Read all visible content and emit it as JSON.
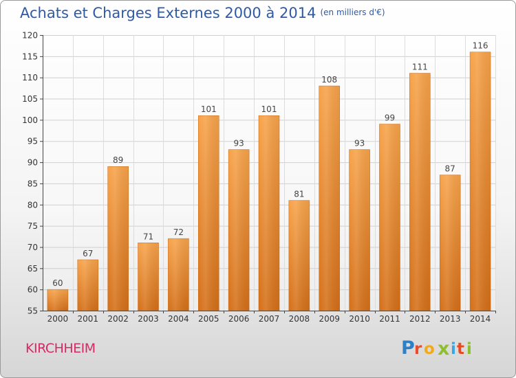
{
  "header": {
    "title": "Achats et Charges Externes 2000 à 2014",
    "unit": "(en milliers d'€)"
  },
  "footer": {
    "city": "KIRCHHEIM",
    "logo_text": "Proxiti"
  },
  "colors": {
    "title": "#2d5aa6",
    "bar_top": "#f7a34a",
    "bar_bottom": "#d46f18",
    "city": "#d62a66",
    "logo_p": "#2f7fc4",
    "logo_r": "#e94b2d",
    "logo_o": "#f2a91a",
    "logo_x": "#8dbf2e",
    "logo_i": "#3da6df",
    "logo_t": "#e9491f"
  },
  "chart_data": {
    "type": "bar",
    "title": "Achats et Charges Externes 2000 à 2014",
    "subtitle": "(en milliers d'€)",
    "xlabel": "",
    "ylabel": "",
    "categories": [
      "2000",
      "2001",
      "2002",
      "2003",
      "2004",
      "2005",
      "2006",
      "2007",
      "2008",
      "2009",
      "2010",
      "2011",
      "2012",
      "2013",
      "2014"
    ],
    "values": [
      60,
      67,
      89,
      71,
      72,
      101,
      93,
      101,
      81,
      108,
      93,
      99,
      111,
      87,
      116
    ],
    "ylim": [
      55,
      120
    ],
    "yticks": [
      55,
      60,
      65,
      70,
      75,
      80,
      85,
      90,
      95,
      100,
      105,
      110,
      115,
      120
    ],
    "grid": true,
    "data_labels": true
  }
}
